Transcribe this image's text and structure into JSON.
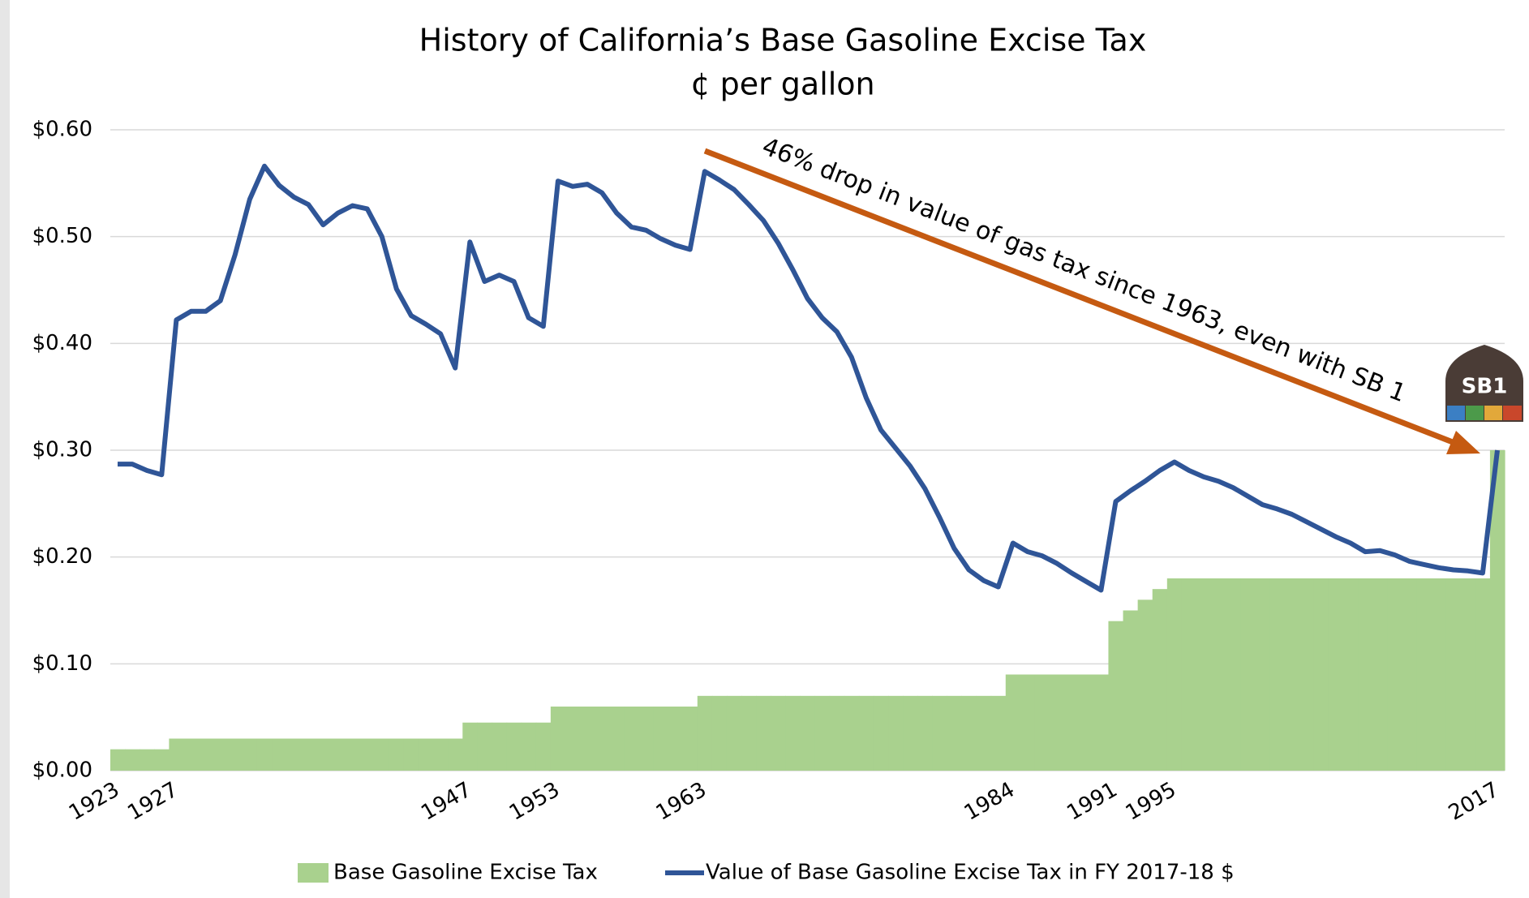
{
  "chart_data": {
    "type": "bar-line",
    "title": "History of California’s Base Gasoline Excise Tax",
    "subtitle": "¢ per gallon",
    "annotation": "46% drop in value of gas tax since 1963, even with SB 1",
    "logo": "SB1",
    "x": [
      1923,
      1924,
      1925,
      1926,
      1927,
      1928,
      1929,
      1930,
      1931,
      1932,
      1933,
      1934,
      1935,
      1936,
      1937,
      1938,
      1939,
      1940,
      1941,
      1942,
      1943,
      1944,
      1945,
      1946,
      1947,
      1948,
      1949,
      1950,
      1951,
      1952,
      1953,
      1954,
      1955,
      1956,
      1957,
      1958,
      1959,
      1960,
      1961,
      1962,
      1963,
      1964,
      1965,
      1966,
      1967,
      1968,
      1969,
      1970,
      1971,
      1972,
      1973,
      1974,
      1975,
      1976,
      1977,
      1978,
      1979,
      1980,
      1981,
      1982,
      1983,
      1984,
      1985,
      1986,
      1987,
      1988,
      1989,
      1990,
      1991,
      1992,
      1993,
      1994,
      1995,
      1996,
      1997,
      1998,
      1999,
      2000,
      2001,
      2002,
      2003,
      2004,
      2005,
      2006,
      2007,
      2008,
      2009,
      2010,
      2011,
      2012,
      2013,
      2014,
      2015,
      2016,
      2017
    ],
    "series": [
      {
        "name": "Base Gasoline Excise Tax",
        "type": "bar",
        "color": "#a9d18e",
        "values": [
          0.02,
          0.02,
          0.02,
          0.02,
          0.03,
          0.03,
          0.03,
          0.03,
          0.03,
          0.03,
          0.03,
          0.03,
          0.03,
          0.03,
          0.03,
          0.03,
          0.03,
          0.03,
          0.03,
          0.03,
          0.03,
          0.03,
          0.03,
          0.03,
          0.045,
          0.045,
          0.045,
          0.045,
          0.045,
          0.045,
          0.06,
          0.06,
          0.06,
          0.06,
          0.06,
          0.06,
          0.06,
          0.06,
          0.06,
          0.06,
          0.07,
          0.07,
          0.07,
          0.07,
          0.07,
          0.07,
          0.07,
          0.07,
          0.07,
          0.07,
          0.07,
          0.07,
          0.07,
          0.07,
          0.07,
          0.07,
          0.07,
          0.07,
          0.07,
          0.07,
          0.07,
          0.09,
          0.09,
          0.09,
          0.09,
          0.09,
          0.09,
          0.09,
          0.14,
          0.15,
          0.16,
          0.17,
          0.18,
          0.18,
          0.18,
          0.18,
          0.18,
          0.18,
          0.18,
          0.18,
          0.18,
          0.18,
          0.18,
          0.18,
          0.18,
          0.18,
          0.18,
          0.18,
          0.18,
          0.18,
          0.18,
          0.18,
          0.18,
          0.18,
          0.3
        ]
      },
      {
        "name": "Value of Base Gasoline Excise Tax in FY 2017-18 $",
        "type": "line",
        "color": "#2f5597",
        "values": [
          0.287,
          0.287,
          0.281,
          0.277,
          0.422,
          0.43,
          0.43,
          0.44,
          0.483,
          0.535,
          0.566,
          0.548,
          0.537,
          0.53,
          0.511,
          0.522,
          0.529,
          0.526,
          0.5,
          0.451,
          0.426,
          0.418,
          0.409,
          0.377,
          0.495,
          0.458,
          0.464,
          0.458,
          0.424,
          0.416,
          0.552,
          0.547,
          0.549,
          0.541,
          0.522,
          0.509,
          0.506,
          0.498,
          0.492,
          0.488,
          0.561,
          0.553,
          0.544,
          0.53,
          0.515,
          0.494,
          0.469,
          0.442,
          0.424,
          0.411,
          0.387,
          0.349,
          0.319,
          0.302,
          0.285,
          0.264,
          0.237,
          0.208,
          0.188,
          0.178,
          0.172,
          0.213,
          0.205,
          0.201,
          0.194,
          0.185,
          0.177,
          0.169,
          0.252,
          0.262,
          0.271,
          0.281,
          0.289,
          0.281,
          0.275,
          0.271,
          0.265,
          0.257,
          0.249,
          0.245,
          0.24,
          0.233,
          0.226,
          0.219,
          0.213,
          0.205,
          0.206,
          0.202,
          0.196,
          0.193,
          0.19,
          0.188,
          0.187,
          0.185,
          0.3
        ]
      }
    ],
    "xlim": [
      1922.5,
      2017.5
    ],
    "xticks": [
      1923,
      1927,
      1947,
      1953,
      1963,
      1984,
      1991,
      1995,
      2017
    ],
    "ylim": [
      0,
      0.6
    ],
    "yticks": [
      {
        "value": 0,
        "label": "$0.00"
      },
      {
        "value": 0.1,
        "label": "$0.10"
      },
      {
        "value": 0.2,
        "label": "$0.20"
      },
      {
        "value": 0.3,
        "label": "$0.30"
      },
      {
        "value": 0.4,
        "label": "$0.40"
      },
      {
        "value": 0.5,
        "label": "$0.50"
      },
      {
        "value": 0.6,
        "label": "$0.60"
      }
    ],
    "grid": true,
    "legend": "bottom"
  }
}
